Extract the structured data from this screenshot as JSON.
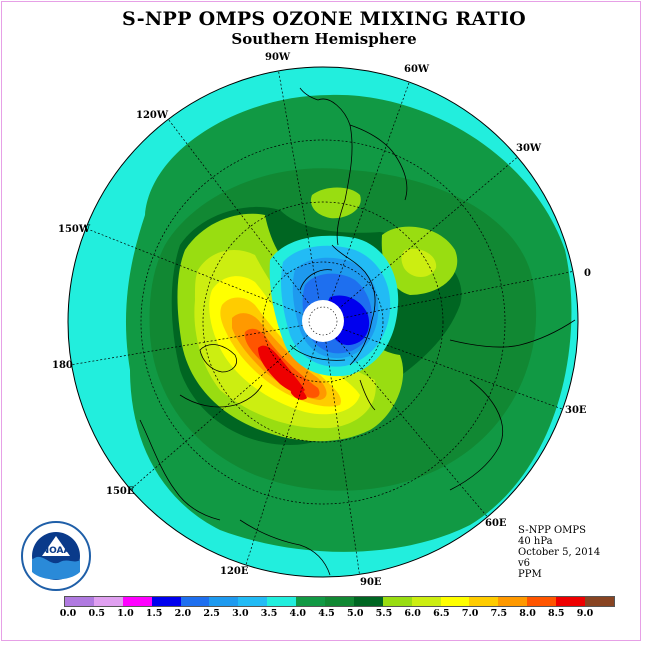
{
  "title": "S-NPP OMPS OZONE MIXING RATIO",
  "subtitle": "Southern Hemisphere",
  "longitude_labels": [
    "90W",
    "60W",
    "30W",
    "0",
    "30E",
    "60E",
    "90E",
    "120E",
    "150E",
    "180",
    "150W",
    "120W"
  ],
  "info": {
    "instrument": "S-NPP OMPS",
    "level": "40 hPa",
    "date": "October 5, 2014",
    "version": "v6",
    "units": "PPM"
  },
  "logo_text": "NOAA",
  "colorbar": {
    "ticks": [
      "0.0",
      "0.5",
      "1.0",
      "1.5",
      "2.0",
      "2.5",
      "3.0",
      "3.5",
      "4.0",
      "4.5",
      "5.0",
      "5.5",
      "6.0",
      "6.5",
      "7.0",
      "7.5",
      "8.0",
      "8.5",
      "9.0"
    ],
    "colors": [
      "#b07ae0",
      "#e0a0f0",
      "#ff00ff",
      "#0000ee",
      "#1e6fef",
      "#1e9aef",
      "#22bbf5",
      "#22eedd",
      "#119944",
      "#118833",
      "#006622",
      "#99dd11",
      "#ccee11",
      "#ffff00",
      "#ffcc00",
      "#ff9900",
      "#ff5500",
      "#ee0000",
      "#884422"
    ]
  }
}
